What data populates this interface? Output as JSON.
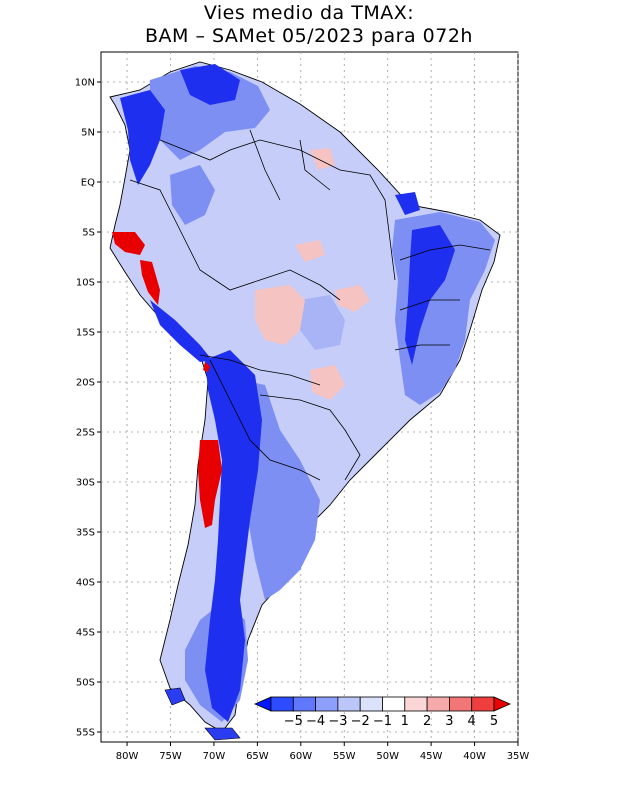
{
  "title_line1": "Vies medio da TMAX:",
  "title_line2": "BAM – SAMet 05/2023  para 072h",
  "map": {
    "lat_labels": [
      "10N",
      "5N",
      "EQ",
      "5S",
      "10S",
      "15S",
      "20S",
      "25S",
      "30S",
      "35S",
      "40S",
      "45S",
      "50S",
      "55S"
    ],
    "lat_values": [
      10,
      5,
      0,
      -5,
      -10,
      -15,
      -20,
      -25,
      -30,
      -35,
      -40,
      -45,
      -50,
      -55
    ],
    "lon_labels": [
      "80W",
      "75W",
      "70W",
      "65W",
      "60W",
      "55W",
      "50W",
      "45W",
      "40W",
      "35W"
    ],
    "lon_values": [
      -80,
      -75,
      -70,
      -65,
      -60,
      -55,
      -50,
      -45,
      -40,
      -35
    ],
    "extent": {
      "lon": [
        -83,
        -35
      ],
      "lat": [
        -56,
        13
      ]
    },
    "grid": true
  },
  "colorbar": {
    "labels": [
      "−5",
      "−4",
      "−3",
      "−2",
      "−1",
      "1",
      "2",
      "3",
      "4",
      "5"
    ],
    "colors": [
      "#0018ff",
      "#2e4cff",
      "#5f78ff",
      "#8d9ffc",
      "#bcc6fb",
      "#dde2fb",
      "#ffffff",
      "#fbd6d6",
      "#f7aaaa",
      "#f27676",
      "#ee3e3e",
      "#e80000"
    ]
  },
  "colors": {
    "strong_negative": "#1e2ff0",
    "moderate_negative": "#6a7ff2",
    "weak_negative": "#c2cbf8",
    "positive": "#f6b9b9",
    "strong_positive": "#e80000"
  }
}
